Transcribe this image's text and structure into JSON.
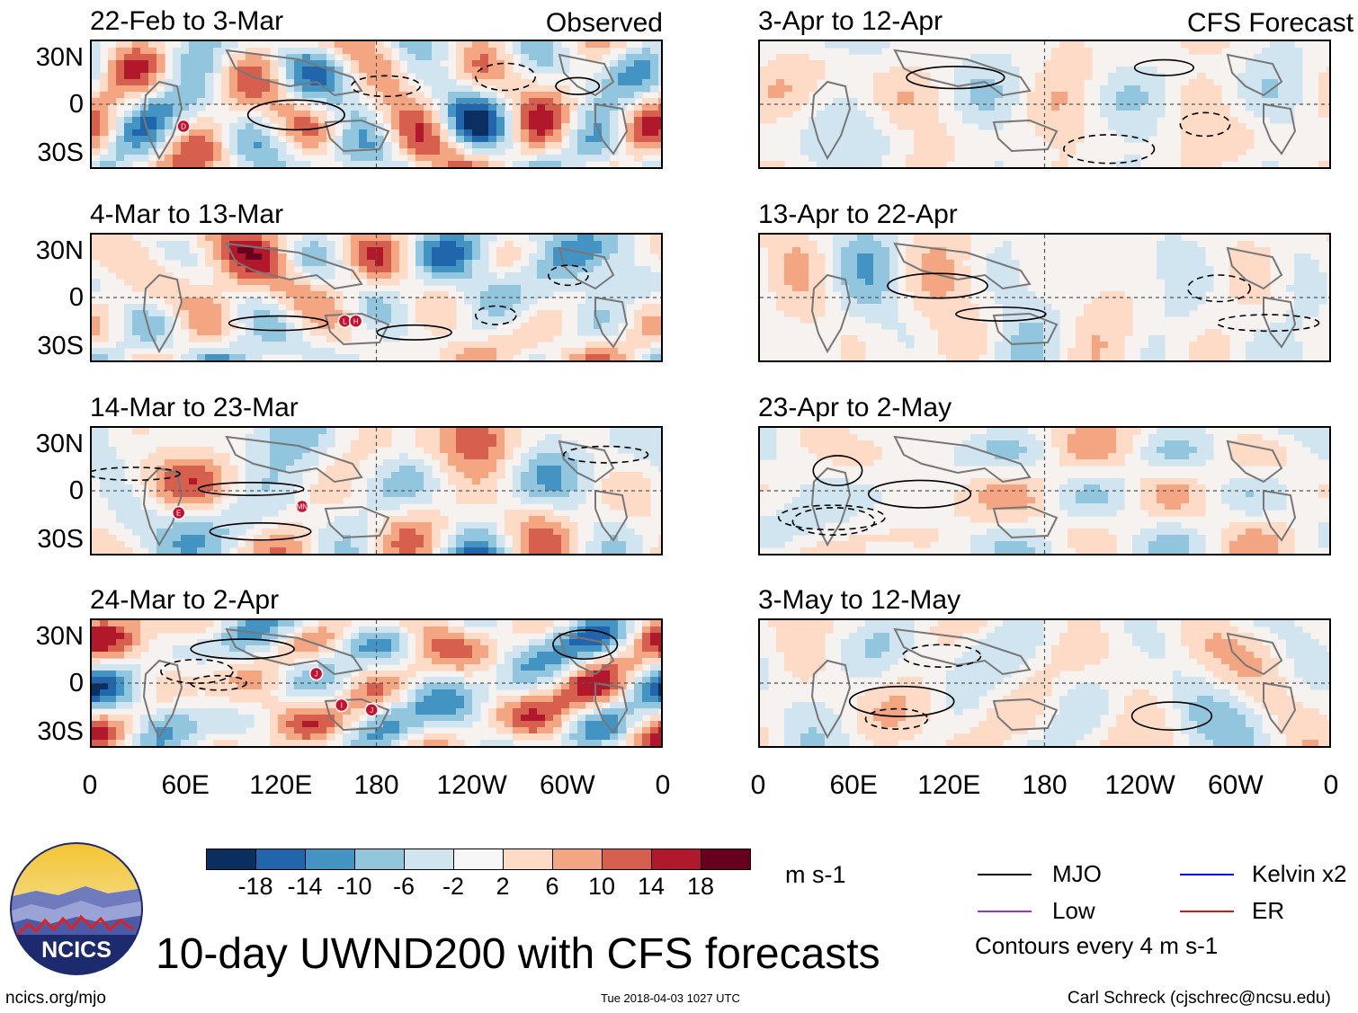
{
  "panels": [
    {
      "title": "22-Feb to 3-Mar",
      "tag": "Observed",
      "markers": [
        {
          "label": "D",
          "lon": 58,
          "lat": -14
        }
      ]
    },
    {
      "title": "3-Apr to 12-Apr",
      "tag": "CFS Forecast",
      "markers": []
    },
    {
      "title": "4-Mar to 13-Mar",
      "tag": "",
      "markers": [
        {
          "label": "L",
          "lon": 160,
          "lat": -15
        },
        {
          "label": "H",
          "lon": 167,
          "lat": -15
        }
      ]
    },
    {
      "title": "13-Apr to 22-Apr",
      "tag": "",
      "markers": []
    },
    {
      "title": "14-Mar to 23-Mar",
      "tag": "",
      "markers": [
        {
          "label": "E",
          "lon": 55,
          "lat": -14
        },
        {
          "label": "MN",
          "lon": 133,
          "lat": -10
        }
      ]
    },
    {
      "title": "23-Apr to 2-May",
      "tag": "",
      "markers": []
    },
    {
      "title": "24-Mar to 2-Apr",
      "tag": "",
      "markers": [
        {
          "label": "J",
          "lon": 142,
          "lat": 6
        },
        {
          "label": "I",
          "lon": 158,
          "lat": -14
        },
        {
          "label": "J",
          "lon": 177,
          "lat": -17
        }
      ]
    },
    {
      "title": "3-May to 12-May",
      "tag": "",
      "markers": []
    }
  ],
  "lat_labels": [
    "30N",
    "0",
    "30S"
  ],
  "lon_labels": [
    "0",
    "60E",
    "120E",
    "180",
    "120W",
    "60W",
    "0"
  ],
  "colorbar": {
    "colors": [
      "#0b2f5e",
      "#2166ac",
      "#4393c3",
      "#92c5de",
      "#d1e5f0",
      "#f7f7f7",
      "#fddbc7",
      "#f4a582",
      "#d6604d",
      "#b2182b",
      "#67001f"
    ],
    "labels": [
      "-18",
      "-14",
      "-10",
      "-6",
      "-2",
      "2",
      "6",
      "10",
      "14",
      "18"
    ],
    "units": "m s-1"
  },
  "legend": {
    "items": [
      {
        "name": "MJO",
        "color": "#000000"
      },
      {
        "name": "Kelvin x2",
        "color": "#0000dd"
      },
      {
        "name": "Low",
        "color": "#9932cc"
      },
      {
        "name": "ER",
        "color": "#dd1111"
      }
    ],
    "note": "Contours every 4 m s-1"
  },
  "logo_text": "NCICS",
  "main_title": "10-day UWND200 with CFS forecasts",
  "footer": {
    "left": "ncics.org/mjo",
    "center": "Tue 2018-04-03 1027 UTC",
    "right": "Carl Schreck (cjschrec@ncsu.edu)"
  }
}
